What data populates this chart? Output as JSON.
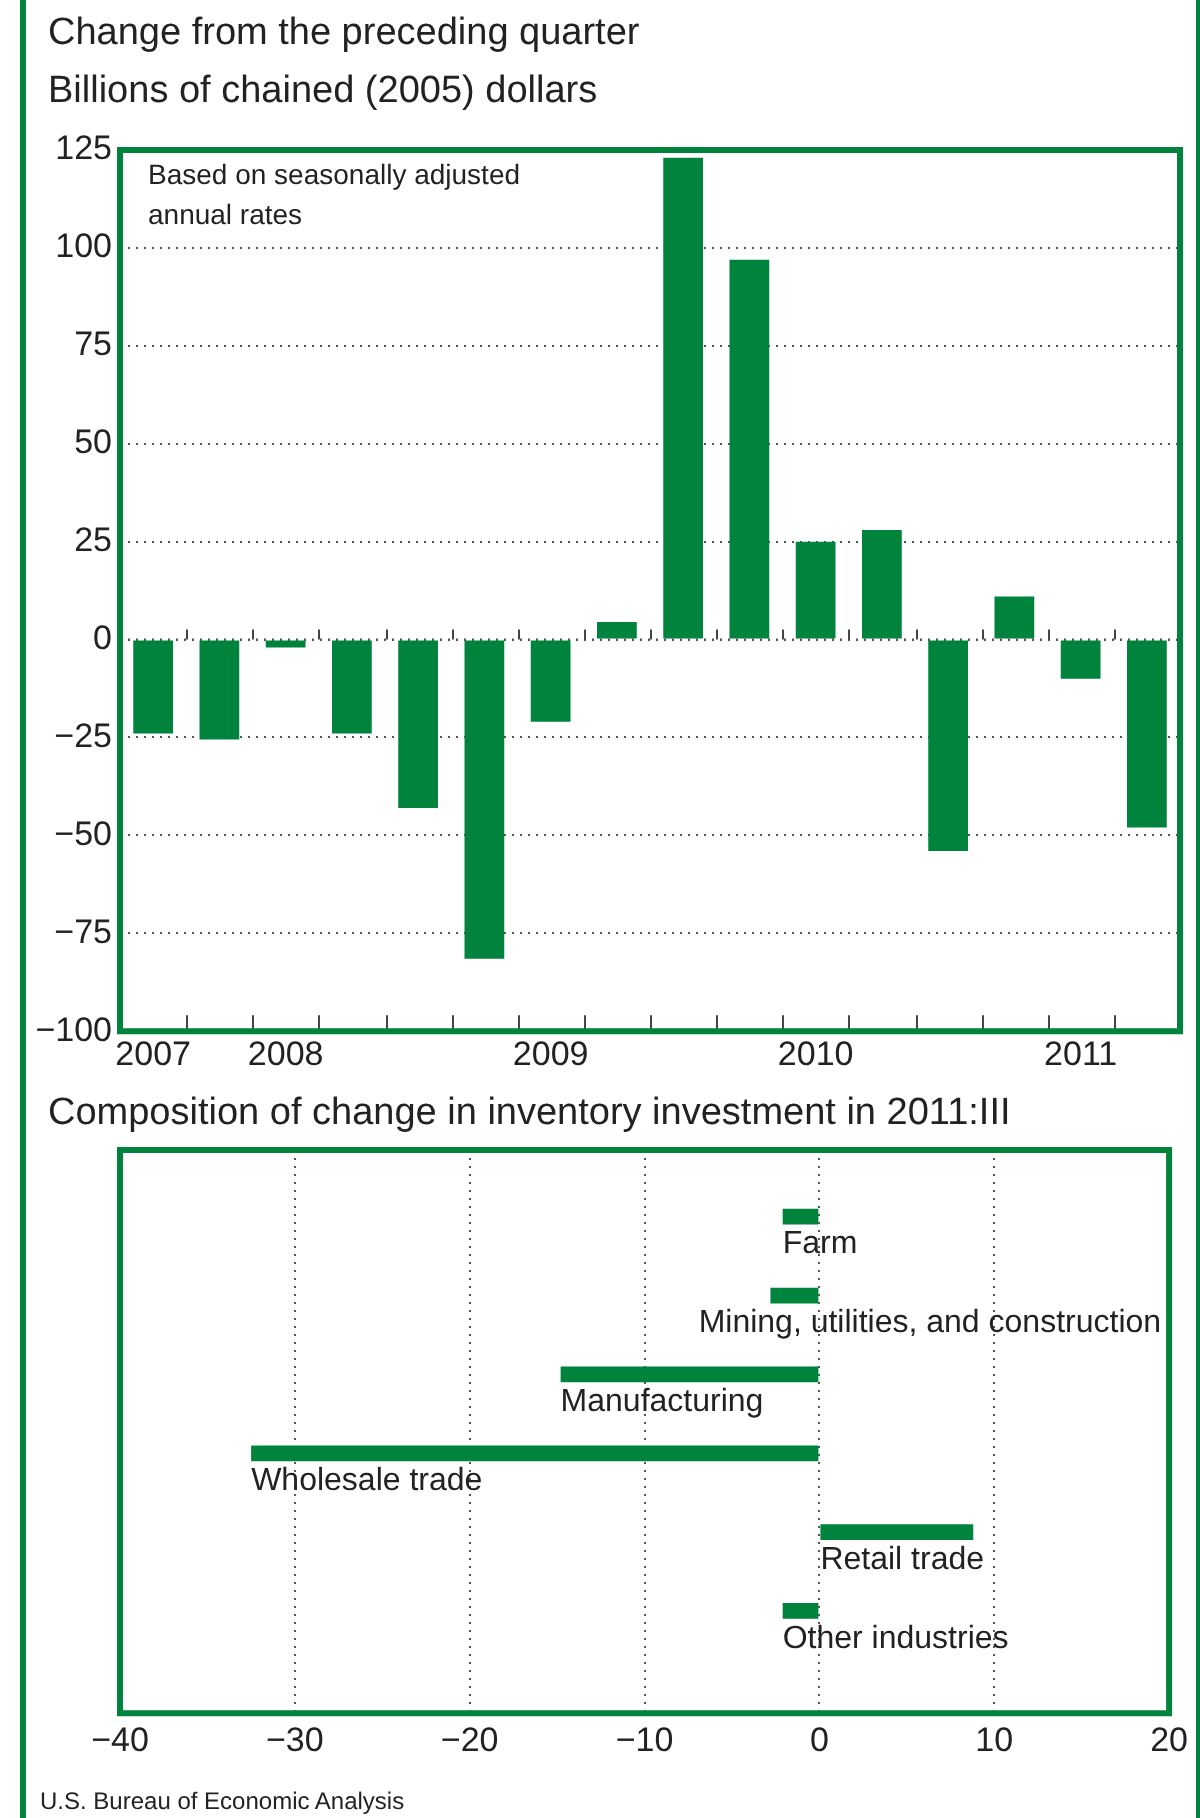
{
  "chart_data": [
    {
      "type": "bar",
      "title": "Change from the preceding quarter",
      "subtitle": "Billions of chained (2005) dollars",
      "categories": [
        "2007",
        null,
        "2008",
        null,
        null,
        null,
        "2009",
        null,
        null,
        null,
        "2010",
        null,
        null,
        null,
        "2011",
        null
      ],
      "values": [
        -24,
        -25.5,
        -2,
        -24,
        -43,
        -81.5,
        -21,
        4.5,
        123,
        97,
        25,
        28,
        -54,
        11,
        -10,
        -48
      ],
      "color": "#00843d",
      "ylim": [
        -100,
        125
      ],
      "yticks": [
        {
          "value": -100,
          "label": "−100"
        },
        {
          "value": -75,
          "label": "−75"
        },
        {
          "value": -50,
          "label": "−50"
        },
        {
          "value": -25,
          "label": "−25"
        },
        0,
        25,
        50,
        75,
        100,
        125
      ],
      "grid": "y",
      "annotations": [
        "Based on seasonally adjusted annual rates"
      ]
    },
    {
      "type": "bar",
      "orientation": "horizontal",
      "title": "Composition of change in inventory investment in 2011:III",
      "categories": [
        "Farm",
        "Mining, utilities, and construction",
        "Manufacturing",
        "Wholesale trade",
        "Retail trade",
        "Other industries"
      ],
      "values": [
        -2.1,
        -2.8,
        -14.8,
        -32.5,
        8.8,
        -2.1
      ],
      "color": "#00843d",
      "xlim": [
        -40,
        20
      ],
      "xticks": [
        {
          "value": -40,
          "label": "−40"
        },
        {
          "value": -30,
          "label": "−30"
        },
        {
          "value": -20,
          "label": "−20"
        },
        {
          "value": -10,
          "label": "−10"
        },
        0,
        10,
        20
      ],
      "grid": "x",
      "annotations": [
        "U.S. Bureau of Economic Analysis"
      ]
    }
  ]
}
